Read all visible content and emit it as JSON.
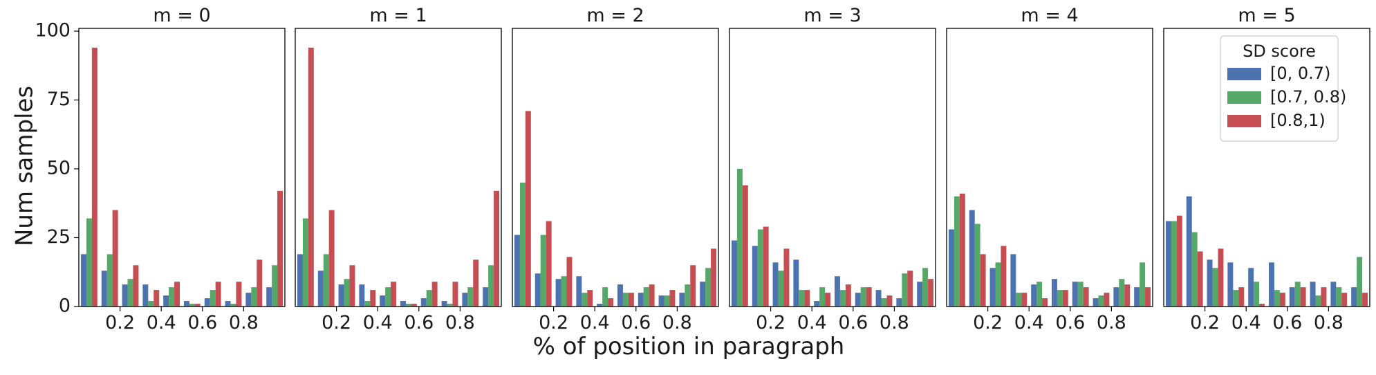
{
  "figure": {
    "ylabel": "Num samples",
    "xlabel": "% of position in paragraph",
    "legend_title": "SD score"
  },
  "colors": {
    "[0, 0.7)": "#4c72b0",
    "[0.7, 0.8)": "#55a868",
    "[0.8,1)": "#c44e52"
  },
  "chart_data": [
    {
      "type": "bar",
      "title": "m = 0",
      "x": [
        0.05,
        0.15,
        0.25,
        0.35,
        0.45,
        0.55,
        0.65,
        0.75,
        0.85,
        0.95
      ],
      "xticks": [
        "0.2",
        "0.4",
        "0.6",
        "0.8"
      ],
      "yticks": [
        "0",
        "25",
        "50",
        "75",
        "100"
      ],
      "ylim": [
        0,
        101
      ],
      "xlim": [
        0,
        1
      ],
      "series": [
        {
          "name": "[0, 0.7)",
          "values": [
            19,
            13,
            8,
            8,
            4,
            2,
            3,
            2,
            5,
            7
          ]
        },
        {
          "name": "[0.7, 0.8)",
          "values": [
            32,
            19,
            10,
            2,
            7,
            1,
            6,
            1,
            7,
            15
          ]
        },
        {
          "name": "[0.8,1)",
          "values": [
            94,
            35,
            15,
            6,
            9,
            1,
            9,
            9,
            17,
            42
          ]
        }
      ]
    },
    {
      "type": "bar",
      "title": "m = 1",
      "x": [
        0.05,
        0.15,
        0.25,
        0.35,
        0.45,
        0.55,
        0.65,
        0.75,
        0.85,
        0.95
      ],
      "xticks": [
        "0.2",
        "0.4",
        "0.6",
        "0.8"
      ],
      "ylim": [
        0,
        101
      ],
      "xlim": [
        0,
        1
      ],
      "series": [
        {
          "name": "[0, 0.7)",
          "values": [
            19,
            13,
            8,
            8,
            4,
            2,
            3,
            2,
            5,
            7
          ]
        },
        {
          "name": "[0.7, 0.8)",
          "values": [
            32,
            19,
            10,
            2,
            7,
            1,
            6,
            1,
            7,
            15
          ]
        },
        {
          "name": "[0.8,1)",
          "values": [
            94,
            35,
            15,
            6,
            9,
            1,
            9,
            9,
            17,
            42
          ]
        }
      ]
    },
    {
      "type": "bar",
      "title": "m = 2",
      "x": [
        0.05,
        0.15,
        0.25,
        0.35,
        0.45,
        0.55,
        0.65,
        0.75,
        0.85,
        0.95
      ],
      "xticks": [
        "0.2",
        "0.4",
        "0.6",
        "0.8"
      ],
      "ylim": [
        0,
        101
      ],
      "xlim": [
        0,
        1
      ],
      "series": [
        {
          "name": "[0, 0.7)",
          "values": [
            26,
            12,
            10,
            11,
            1,
            8,
            5,
            4,
            5,
            9
          ]
        },
        {
          "name": "[0.7, 0.8)",
          "values": [
            45,
            26,
            11,
            5,
            7,
            5,
            7,
            4,
            8,
            14
          ]
        },
        {
          "name": "[0.8,1)",
          "values": [
            71,
            31,
            18,
            6,
            3,
            5,
            8,
            6,
            15,
            21
          ]
        }
      ]
    },
    {
      "type": "bar",
      "title": "m = 3",
      "x": [
        0.05,
        0.15,
        0.25,
        0.35,
        0.45,
        0.55,
        0.65,
        0.75,
        0.85,
        0.95
      ],
      "xticks": [
        "0.2",
        "0.4",
        "0.6",
        "0.8"
      ],
      "ylim": [
        0,
        101
      ],
      "xlim": [
        0,
        1
      ],
      "series": [
        {
          "name": "[0, 0.7)",
          "values": [
            24,
            22,
            16,
            17,
            2,
            11,
            5,
            6,
            3,
            9
          ]
        },
        {
          "name": "[0.7, 0.8)",
          "values": [
            50,
            28,
            13,
            6,
            7,
            6,
            7,
            3,
            12,
            14
          ]
        },
        {
          "name": "[0.8,1)",
          "values": [
            44,
            29,
            21,
            6,
            5,
            8,
            7,
            4,
            13,
            10
          ]
        }
      ]
    },
    {
      "type": "bar",
      "title": "m = 4",
      "x": [
        0.05,
        0.15,
        0.25,
        0.35,
        0.45,
        0.55,
        0.65,
        0.75,
        0.85,
        0.95
      ],
      "xticks": [
        "0.2",
        "0.4",
        "0.6",
        "0.8"
      ],
      "ylim": [
        0,
        101
      ],
      "xlim": [
        0,
        1
      ],
      "series": [
        {
          "name": "[0, 0.7)",
          "values": [
            28,
            35,
            14,
            19,
            8,
            10,
            9,
            3,
            7,
            7
          ]
        },
        {
          "name": "[0.7, 0.8)",
          "values": [
            40,
            30,
            16,
            5,
            9,
            6,
            9,
            4,
            10,
            16
          ]
        },
        {
          "name": "[0.8,1)",
          "values": [
            41,
            19,
            22,
            5,
            3,
            6,
            7,
            5,
            8,
            7
          ]
        }
      ]
    },
    {
      "type": "bar",
      "title": "m = 5",
      "x": [
        0.05,
        0.15,
        0.25,
        0.35,
        0.45,
        0.55,
        0.65,
        0.75,
        0.85,
        0.95
      ],
      "xticks": [
        "0.2",
        "0.4",
        "0.6",
        "0.8"
      ],
      "ylim": [
        0,
        101
      ],
      "xlim": [
        0,
        1
      ],
      "legend": "top-right",
      "series": [
        {
          "name": "[0, 0.7)",
          "values": [
            31,
            40,
            17,
            16,
            14,
            16,
            7,
            9,
            9,
            7
          ]
        },
        {
          "name": "[0.7, 0.8)",
          "values": [
            31,
            27,
            14,
            6,
            9,
            6,
            9,
            4,
            7,
            18
          ]
        },
        {
          "name": "[0.8,1)",
          "values": [
            33,
            20,
            21,
            7,
            1,
            5,
            7,
            7,
            5,
            5
          ]
        }
      ]
    }
  ]
}
